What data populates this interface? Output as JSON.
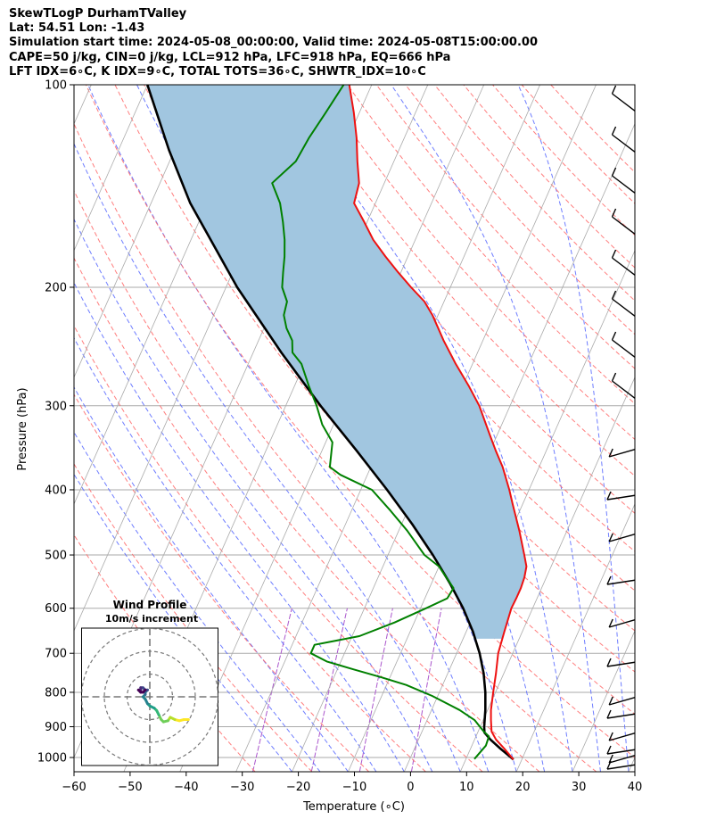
{
  "header": {
    "line1": "SkewTLogP DurhamTValley",
    "line2": "Lat: 54.51   Lon: -1.43",
    "line3": "Simulation start time: 2024-05-08_00:00:00, Valid time: 2024-05-08T15:00:00.00",
    "line4": "CAPE=50 j/kg, CIN=0 j/kg, LCL=912 hPa, LFC=918 hPa, EQ=666 hPa",
    "line5": "LFT IDX=6∘C, K IDX=9∘C, TOTAL TOTS=36∘C, SHWTR_IDX=10∘C"
  },
  "chart_data": [
    {
      "type": "line",
      "subtype": "skew-T log-P diagram",
      "xlabel": "Temperature (∘C)",
      "ylabel": "Pressure (hPa)",
      "xlim": [
        -60,
        40
      ],
      "ylim": [
        1050,
        100
      ],
      "y_scale": "log",
      "grid": true,
      "x_ticks": [
        -60,
        -50,
        -40,
        -30,
        -20,
        -10,
        0,
        10,
        20,
        30,
        40
      ],
      "y_ticks": [
        1000,
        900,
        800,
        700,
        600,
        500,
        400,
        300,
        200,
        100
      ],
      "colors": {
        "temperature": "#ee1111",
        "dewpoint": "#008000",
        "parcel": "#000000",
        "cape_fill": "#a1c6e0",
        "dry_adiabats": "#ff6666",
        "moist_adiabats": "#5566ff",
        "mixing_ratio": "#aa55cc",
        "isotherms": "#aaaaaa"
      },
      "series": [
        {
          "role": "temperature",
          "points": [
            [
              1007,
              18.5
            ],
            [
              970,
              16
            ],
            [
              940,
              13.8
            ],
            [
              915,
              12.4
            ],
            [
              880,
              11.4
            ],
            [
              850,
              10.6
            ],
            [
              800,
              9.6
            ],
            [
              750,
              8.6
            ],
            [
              700,
              7.4
            ],
            [
              650,
              6.8
            ],
            [
              600,
              6.2
            ],
            [
              580,
              6.3
            ],
            [
              560,
              6.3
            ],
            [
              540,
              6.1
            ],
            [
              520,
              5.6
            ],
            [
              500,
              4.3
            ],
            [
              460,
              1.5
            ],
            [
              420,
              -1.8
            ],
            [
              400,
              -3.5
            ],
            [
              370,
              -6.5
            ],
            [
              350,
              -9
            ],
            [
              330,
              -11.5
            ],
            [
              300,
              -15.5
            ],
            [
              280,
              -19
            ],
            [
              260,
              -23
            ],
            [
              240,
              -27
            ],
            [
              220,
              -31
            ],
            [
              210,
              -33.5
            ],
            [
              200,
              -37
            ],
            [
              190,
              -40.5
            ],
            [
              180,
              -44
            ],
            [
              170,
              -47.5
            ],
            [
              160,
              -50.5
            ],
            [
              150,
              -53.8
            ],
            [
              140,
              -54.5
            ],
            [
              130,
              -56.5
            ],
            [
              120,
              -58.5
            ],
            [
              110,
              -61
            ],
            [
              100,
              -64
            ]
          ]
        },
        {
          "role": "dewpoint",
          "points": [
            [
              1005,
              11.5
            ],
            [
              960,
              12.5
            ],
            [
              930,
              12.3
            ],
            [
              915,
              11
            ],
            [
              880,
              8.5
            ],
            [
              850,
              5
            ],
            [
              810,
              -1
            ],
            [
              780,
              -6.5
            ],
            [
              760,
              -11.5
            ],
            [
              740,
              -17
            ],
            [
              720,
              -22.5
            ],
            [
              700,
              -26
            ],
            [
              680,
              -26
            ],
            [
              660,
              -18.7
            ],
            [
              630,
              -13.5
            ],
            [
              600,
              -9
            ],
            [
              580,
              -6
            ],
            [
              560,
              -5.7
            ],
            [
              520,
              -10
            ],
            [
              500,
              -13.5
            ],
            [
              460,
              -18.5
            ],
            [
              430,
              -23
            ],
            [
              400,
              -28
            ],
            [
              380,
              -34.8
            ],
            [
              370,
              -37.3
            ],
            [
              340,
              -38.8
            ],
            [
              320,
              -42
            ],
            [
              300,
              -44.5
            ],
            [
              280,
              -47.5
            ],
            [
              260,
              -50.5
            ],
            [
              250,
              -53
            ],
            [
              240,
              -54
            ],
            [
              230,
              -56
            ],
            [
              220,
              -57.5
            ],
            [
              210,
              -58
            ],
            [
              200,
              -60
            ],
            [
              190,
              -61
            ],
            [
              180,
              -62
            ],
            [
              170,
              -63.3
            ],
            [
              160,
              -65
            ],
            [
              150,
              -67
            ],
            [
              140,
              -70
            ],
            [
              130,
              -67.5
            ],
            [
              120,
              -67
            ],
            [
              110,
              -66
            ],
            [
              100,
              -65
            ]
          ]
        },
        {
          "role": "parcel",
          "points": [
            [
              1007,
              18.5
            ],
            [
              970,
              15.3
            ],
            [
              940,
              12.8
            ],
            [
              918,
              11.2
            ],
            [
              900,
              10.7
            ],
            [
              850,
              9.6
            ],
            [
              800,
              8.2
            ],
            [
              750,
              6.4
            ],
            [
              700,
              4.1
            ],
            [
              650,
              1.2
            ],
            [
              600,
              -2.4
            ],
            [
              550,
              -6.8
            ],
            [
              500,
              -12
            ],
            [
              450,
              -18.1
            ],
            [
              400,
              -25.3
            ],
            [
              350,
              -33.8
            ],
            [
              300,
              -43.8
            ],
            [
              250,
              -55
            ],
            [
              200,
              -68
            ],
            [
              150,
              -83
            ],
            [
              125,
              -91
            ],
            [
              100,
              -100
            ]
          ]
        }
      ]
    },
    {
      "type": "scatter",
      "subtype": "hodograph",
      "title": "Wind Profile",
      "subtitle": "10m/s increment",
      "rings_ms": [
        10,
        20,
        30
      ],
      "color_scale": "viridis (surface yellow/green to top purple)",
      "points_uv_ms": [
        [
          17,
          -10
        ],
        [
          15,
          -10
        ],
        [
          13,
          -10.5
        ],
        [
          11,
          -10
        ],
        [
          9,
          -9
        ],
        [
          8,
          -10.5
        ],
        [
          6,
          -11
        ],
        [
          5,
          -10
        ],
        [
          4,
          -8
        ],
        [
          3,
          -6
        ],
        [
          2,
          -5
        ],
        [
          0,
          -4
        ],
        [
          -1,
          -3
        ],
        [
          -2,
          -1
        ],
        [
          -3,
          0
        ],
        [
          -2,
          1
        ],
        [
          -2,
          2
        ],
        [
          -1,
          3
        ],
        [
          -2,
          3
        ],
        [
          -3,
          4
        ],
        [
          -4,
          4
        ],
        [
          -4,
          3
        ],
        [
          -5,
          3
        ],
        [
          -4,
          2
        ],
        [
          -3,
          2
        ],
        [
          -2,
          3
        ]
      ]
    }
  ]
}
